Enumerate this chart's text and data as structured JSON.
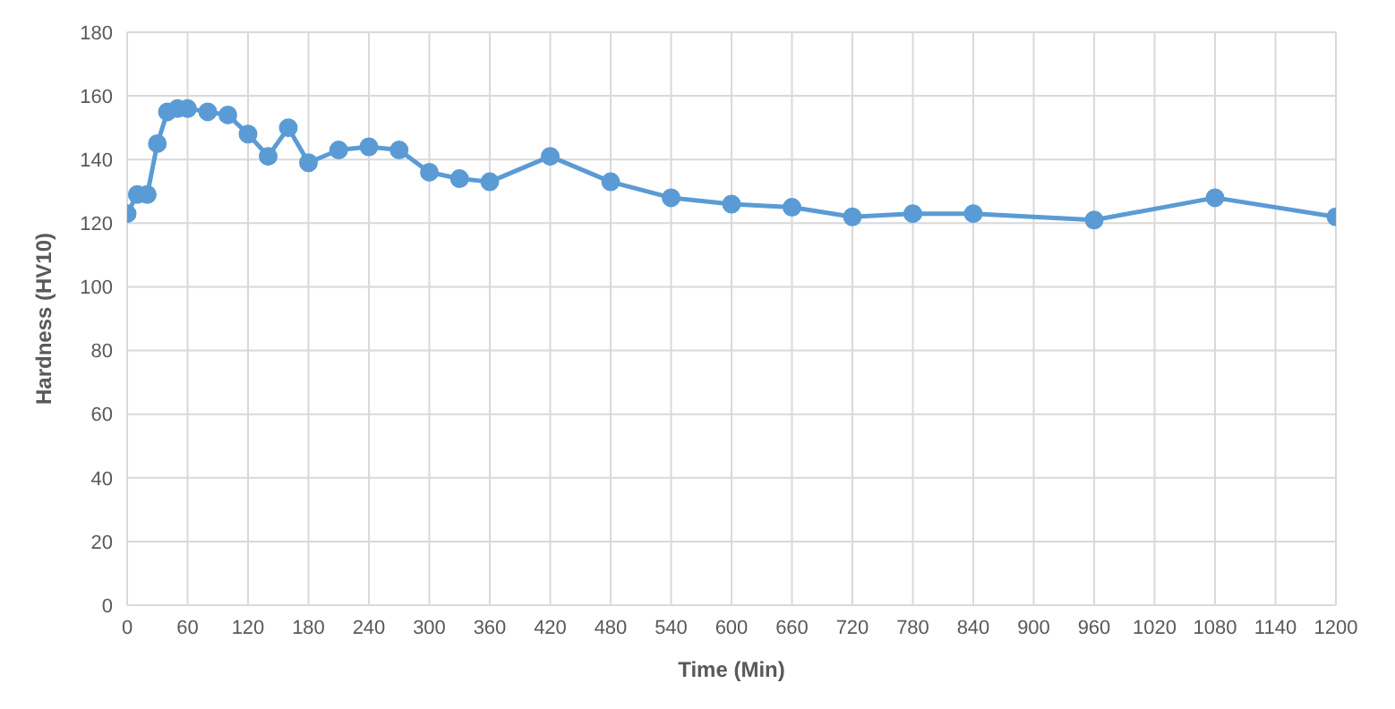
{
  "chart_data": {
    "type": "line",
    "xlabel": "Time (Min)",
    "ylabel": "Hardness (HV10)",
    "x": [
      0,
      10,
      20,
      30,
      40,
      50,
      60,
      80,
      100,
      120,
      140,
      160,
      180,
      210,
      240,
      270,
      300,
      330,
      360,
      420,
      480,
      540,
      600,
      660,
      720,
      780,
      840,
      960,
      1080,
      1200
    ],
    "series": [
      {
        "color": "#5b9bd5",
        "values": [
          123,
          129,
          129,
          145,
          155,
          156,
          156,
          155,
          154,
          148,
          141,
          150,
          139,
          143,
          144,
          143,
          136,
          134,
          133,
          141,
          133,
          128,
          126,
          125,
          122,
          123,
          123,
          121,
          128,
          122
        ]
      }
    ],
    "xlim": [
      0,
      1200
    ],
    "xticks": [
      0,
      60,
      120,
      180,
      240,
      300,
      360,
      420,
      480,
      540,
      600,
      660,
      720,
      780,
      840,
      900,
      960,
      1020,
      1080,
      1140,
      1200
    ],
    "ylim": [
      0,
      180
    ],
    "yticks": [
      0,
      20,
      40,
      60,
      80,
      100,
      120,
      140,
      160,
      180
    ],
    "grid": true,
    "marker": "circle",
    "line_style": "solid",
    "legend": false
  }
}
